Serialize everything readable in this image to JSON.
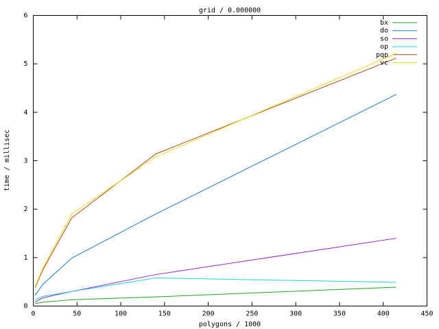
{
  "chart_data": {
    "type": "line",
    "title": "grid / 0.000000",
    "xlabel": "polygons / 1000",
    "ylabel": "time / millisec",
    "x": [
      2,
      11,
      44,
      140,
      415
    ],
    "series": [
      {
        "name": "bx",
        "color": "#20a020",
        "values": [
          0.05,
          0.08,
          0.13,
          0.19,
          0.39
        ]
      },
      {
        "name": "do",
        "color": "#1a78d0",
        "values": [
          0.22,
          0.45,
          0.99,
          1.9,
          4.37
        ]
      },
      {
        "name": "so",
        "color": "#9a20d0",
        "values": [
          0.08,
          0.17,
          0.3,
          0.65,
          1.4
        ]
      },
      {
        "name": "op",
        "color": "#20d0d8",
        "values": [
          0.13,
          0.2,
          0.3,
          0.58,
          0.49
        ]
      },
      {
        "name": "pqp",
        "color": "#b04a20",
        "values": [
          0.38,
          0.75,
          1.82,
          3.14,
          5.12
        ]
      },
      {
        "name": "vc",
        "color": "#e8d820",
        "values": [
          0.4,
          0.78,
          1.9,
          3.08,
          5.22
        ]
      }
    ],
    "xlim": [
      0,
      450
    ],
    "xticks": [
      0,
      50,
      100,
      150,
      200,
      250,
      300,
      350,
      400,
      450
    ],
    "ylim": [
      0,
      6
    ],
    "yticks": [
      0,
      1,
      2,
      3,
      4,
      5,
      6
    ],
    "legend": "top-right"
  }
}
